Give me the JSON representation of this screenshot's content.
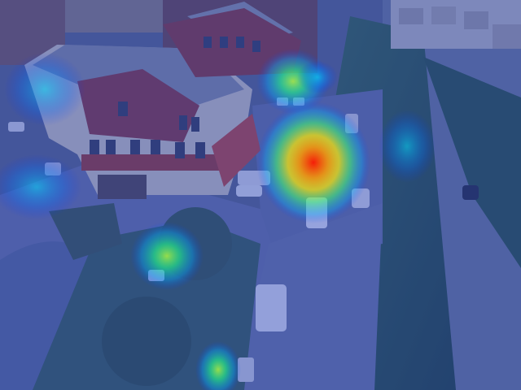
{
  "scene": {
    "type": "aerial photograph with attention heatmap overlay",
    "overlay_colormap": "jet",
    "colors": {
      "overlay_base": "#1e3cc8",
      "road": "#6f7896",
      "building_roof": "#8a8f9e",
      "building_wall_red": "#8a3a3a",
      "building_wall_cream": "#c9c2b4",
      "trees": "#2f5a3a",
      "heat_hot": "#ff2000",
      "heat_warm": "#ffd000",
      "heat_mid": "#40ff80",
      "heat_cool": "#00a0ff"
    },
    "heat_regions": [
      {
        "name": "heat-region-parked-cars-center",
        "peak": "high"
      },
      {
        "name": "heat-region-lot-lower-left",
        "peak": "medium"
      },
      {
        "name": "heat-region-street-top",
        "peak": "medium"
      },
      {
        "name": "heat-region-bottom-path",
        "peak": "medium"
      },
      {
        "name": "heat-region-building-left",
        "peak": "low"
      },
      {
        "name": "heat-region-trees-right",
        "peak": "low"
      }
    ]
  }
}
